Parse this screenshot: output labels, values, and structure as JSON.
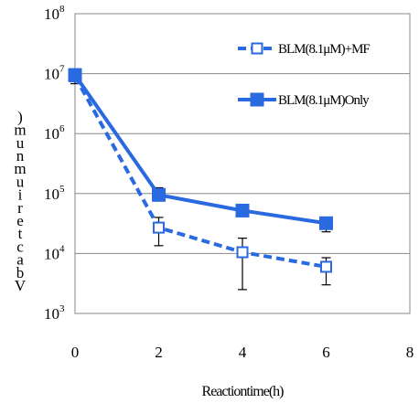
{
  "chart_data": {
    "type": "line",
    "xlabel": "Reactiontime(h)",
    "ylabel": "Vbacteriumnum)",
    "x_ticks": [
      "0",
      "2",
      "4",
      "6",
      "8"
    ],
    "xlim": [
      0,
      8
    ],
    "yscale": "log",
    "ylim": [
      1000,
      100000000
    ],
    "y_ticks": [
      {
        "base": "10",
        "exp": "3",
        "value": 1000
      },
      {
        "base": "10",
        "exp": "4",
        "value": 10000
      },
      {
        "base": "10",
        "exp": "5",
        "value": 100000
      },
      {
        "base": "10",
        "exp": "6",
        "value": 1000000
      },
      {
        "base": "10",
        "exp": "7",
        "value": 10000000
      },
      {
        "base": "10",
        "exp": "8",
        "value": 100000000
      }
    ],
    "grid": "horizontal",
    "legend_position": "top-right",
    "series": [
      {
        "name": "BLM(8.1μM)+MF",
        "style": "dashed",
        "marker": "open-square",
        "color": "#2a6ae0",
        "x": [
          0,
          2,
          4,
          6
        ],
        "y": [
          9000000,
          27000,
          10500,
          6000
        ],
        "err_low": [
          6800000,
          13500,
          2500,
          3000
        ],
        "err_high": [
          10500000,
          40000,
          18000,
          8500
        ]
      },
      {
        "name": "BLM(8.1μM)Only",
        "style": "solid",
        "marker": "filled-square",
        "color": "#2a6ae0",
        "x": [
          0,
          2,
          4,
          6
        ],
        "y": [
          9500000,
          95000,
          52000,
          32000
        ],
        "err_low": [
          7500000,
          75000,
          43000,
          23000
        ],
        "err_high": [
          11000000,
          125000,
          62000,
          40000
        ]
      }
    ]
  }
}
